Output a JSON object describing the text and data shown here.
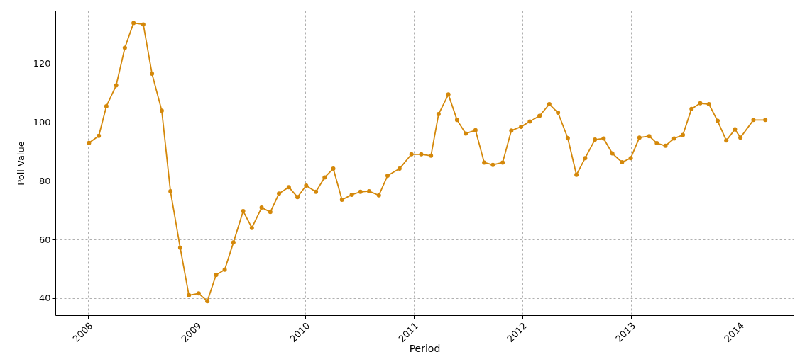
{
  "chart_data": {
    "type": "line",
    "xlabel": "Period",
    "ylabel": "Poll Value",
    "x": [
      2008.01,
      2008.1,
      2008.17,
      2008.26,
      2008.34,
      2008.42,
      2008.51,
      2008.59,
      2008.68,
      2008.76,
      2008.85,
      2008.93,
      2009.02,
      2009.1,
      2009.18,
      2009.26,
      2009.34,
      2009.43,
      2009.51,
      2009.6,
      2009.68,
      2009.76,
      2009.85,
      2009.93,
      2010.01,
      2010.1,
      2010.18,
      2010.26,
      2010.34,
      2010.43,
      2010.51,
      2010.59,
      2010.68,
      2010.76,
      2010.87,
      2010.98,
      2011.07,
      2011.16,
      2011.23,
      2011.32,
      2011.4,
      2011.48,
      2011.57,
      2011.65,
      2011.73,
      2011.82,
      2011.9,
      2011.99,
      2012.07,
      2012.16,
      2012.25,
      2012.33,
      2012.42,
      2012.5,
      2012.58,
      2012.67,
      2012.75,
      2012.83,
      2012.92,
      2013.0,
      2013.08,
      2013.17,
      2013.24,
      2013.32,
      2013.4,
      2013.48,
      2013.56,
      2013.64,
      2013.72,
      2013.8,
      2013.88,
      2013.96,
      2014.01,
      2014.13,
      2014.24
    ],
    "series": [
      {
        "color": "#d4880a",
        "values": [
          93.0,
          95.4,
          105.5,
          112.6,
          125.4,
          133.9,
          133.4,
          116.6,
          104.0,
          76.5,
          57.2,
          41.0,
          41.6,
          39.0,
          47.9,
          49.7,
          59.0,
          69.7,
          64.0,
          70.9,
          69.4,
          75.7,
          77.9,
          74.5,
          78.4,
          76.3,
          81.2,
          84.2,
          73.6,
          75.3,
          76.3,
          76.5,
          75.1,
          81.8,
          84.2,
          89.1,
          89.1,
          88.6,
          102.8,
          109.5,
          100.8,
          96.2,
          97.3,
          86.3,
          85.5,
          86.3,
          97.2,
          98.5,
          100.3,
          102.2,
          106.2,
          103.3,
          94.6,
          82.1,
          87.8,
          94.1,
          94.5,
          89.4,
          86.4,
          87.8,
          94.8,
          95.3,
          92.9,
          92.0,
          94.5,
          95.7,
          104.6,
          106.5,
          106.2,
          100.5,
          93.8,
          97.6,
          94.8,
          100.8,
          100.8
        ]
      }
    ],
    "xlim": [
      2007.7,
      2014.5
    ],
    "xticks": [
      2008,
      2009,
      2010,
      2011,
      2012,
      2013,
      2014
    ],
    "ylim": [
      34.2,
      138.1
    ],
    "yticks": [
      40,
      60,
      80,
      100,
      120
    ],
    "grid": true,
    "marker": "circle",
    "line_style": "solid"
  }
}
